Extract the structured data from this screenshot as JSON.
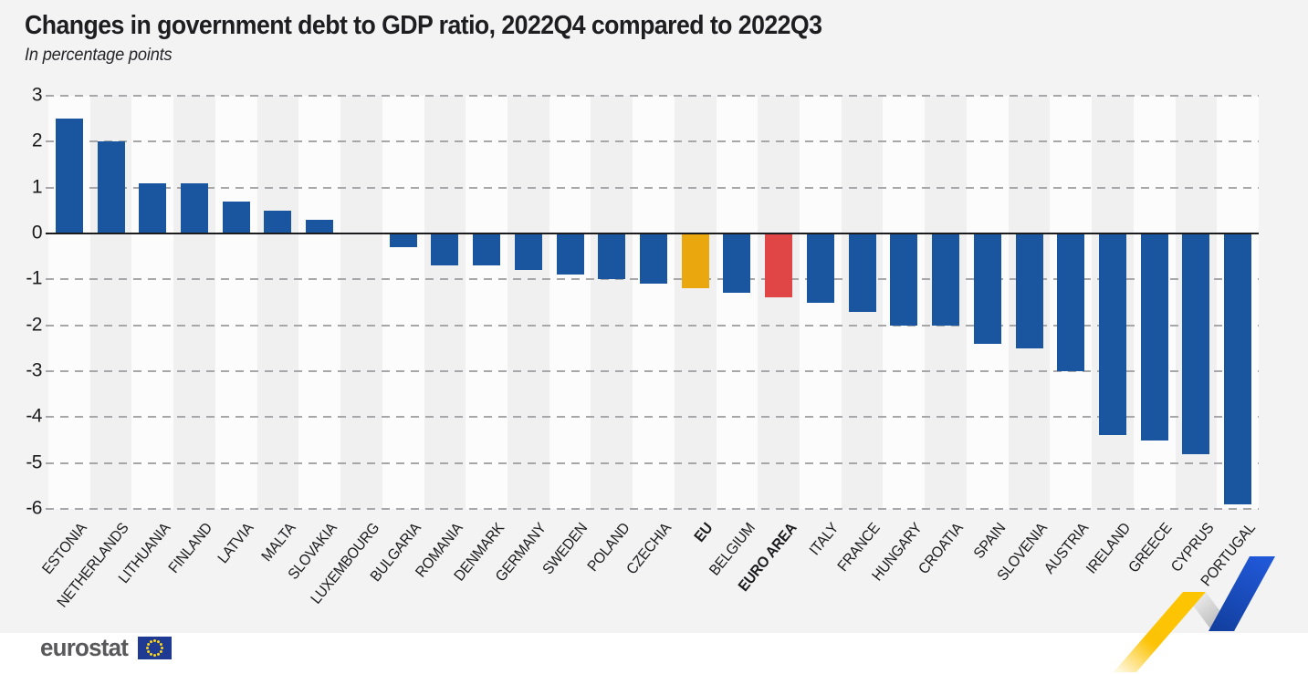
{
  "page": {
    "title": "Changes in government debt to GDP ratio, 2022Q4 compared to 2022Q3",
    "subtitle": "In percentage points",
    "logo_text": "eurostat"
  },
  "chart_data": {
    "type": "bar",
    "title": "Changes in government debt to GDP ratio, 2022Q4 compared to 2022Q3",
    "subtitle": "In percentage points",
    "ylabel": "percentage points",
    "ylim": [
      -6,
      3
    ],
    "yticks": [
      3,
      2,
      1,
      0,
      -1,
      -2,
      -3,
      -4,
      -5,
      -6
    ],
    "grid": "dashed horizontal gridlines, solid zero line, alternating vertical background stripes",
    "legend": "none",
    "categories": [
      "ESTONIA",
      "NETHERLANDS",
      "LITHUANIA",
      "FINLAND",
      "LATVIA",
      "MALTA",
      "SLOVAKIA",
      "LUXEMBOURG",
      "BULGARIA",
      "ROMANIA",
      "DENMARK",
      "GERMANY",
      "SWEDEN",
      "POLAND",
      "CZECHIA",
      "EU",
      "BELGIUM",
      "EURO AREA",
      "ITALY",
      "FRANCE",
      "HUNGARY",
      "CROATIA",
      "SPAIN",
      "SLOVENIA",
      "AUSTRIA",
      "IRELAND",
      "GREECE",
      "CYPRUS",
      "PORTUGAL"
    ],
    "values": [
      2.5,
      2.0,
      1.1,
      1.1,
      0.7,
      0.5,
      0.3,
      0.0,
      -0.3,
      -0.7,
      -0.7,
      -0.8,
      -0.9,
      -1.0,
      -1.1,
      -1.2,
      -1.3,
      -1.4,
      -1.5,
      -1.7,
      -2.0,
      -2.0,
      -2.4,
      -2.5,
      -3.0,
      -4.4,
      -4.5,
      -4.8,
      -5.9
    ],
    "bold_categories": [
      "EU",
      "EURO AREA"
    ],
    "colors": {
      "default": "#1A56A0",
      "EU": "#EAA70E",
      "EURO AREA": "#E04646",
      "stripe_gray": "#f0f0f0",
      "stripe_white": "#fcfcfd",
      "gridline": "#a7a7a9",
      "zero_line": "#1c1c1e",
      "ribbon_yellow": "#FDC500",
      "ribbon_blue": "#1B4FC4",
      "logo_flag_blue": "#1E3A93",
      "logo_star_yellow": "#FFD617"
    }
  }
}
